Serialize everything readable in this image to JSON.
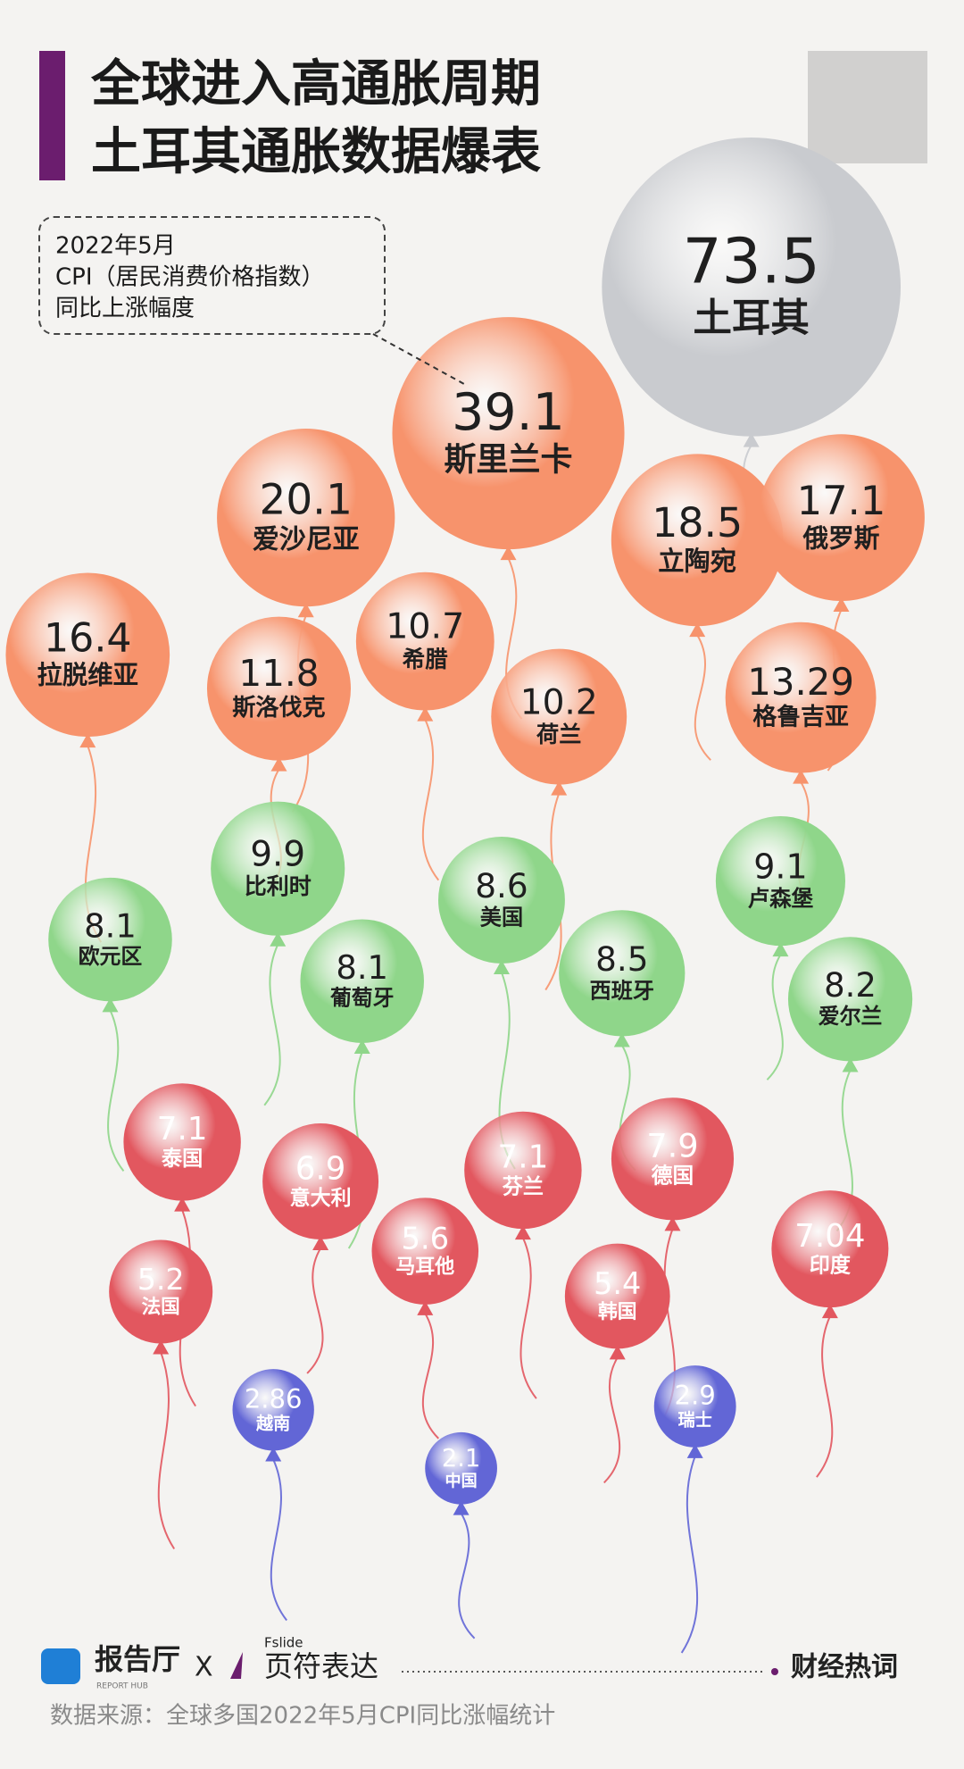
{
  "chart_data": {
    "type": "balloon",
    "title": [
      "全球进入高通胀周期",
      "土耳其通胀数据爆表"
    ],
    "annotation": [
      "2022年5月",
      "CPI（居民消费价格指数）",
      "同比上涨幅度"
    ],
    "categories": [
      "土耳其",
      "斯里兰卡",
      "爱沙尼亚",
      "立陶宛",
      "俄罗斯",
      "拉脱维亚",
      "斯洛伐克",
      "希腊",
      "荷兰",
      "格鲁吉亚",
      "比利时",
      "美国",
      "卢森堡",
      "欧元区",
      "葡萄牙",
      "西班牙",
      "爱尔兰",
      "泰国",
      "意大利",
      "芬兰",
      "德国",
      "马耳他",
      "印度",
      "法国",
      "韩国",
      "越南",
      "瑞士",
      "中国"
    ],
    "values": [
      73.5,
      39.1,
      20.1,
      18.5,
      17.1,
      16.4,
      11.8,
      10.7,
      10.2,
      13.29,
      9.9,
      8.6,
      9.1,
      8.1,
      8.1,
      8.5,
      8.2,
      7.1,
      6.9,
      7.1,
      7.9,
      5.6,
      7.04,
      5.2,
      5.4,
      2.86,
      2.9,
      2.1
    ],
    "colors": [
      "#c9cbcf",
      "#f7936c",
      "#f7936c",
      "#f7936c",
      "#f7936c",
      "#f7936c",
      "#f7936c",
      "#f7936c",
      "#f7936c",
      "#f7936c",
      "#8fd68a",
      "#8fd68a",
      "#8fd68a",
      "#8fd68a",
      "#8fd68a",
      "#8fd68a",
      "#8fd68a",
      "#e2575f",
      "#e2575f",
      "#e2575f",
      "#e2575f",
      "#e2575f",
      "#e2575f",
      "#e2575f",
      "#e2575f",
      "#6266d6",
      "#6266d6",
      "#6266d6"
    ],
    "footer": {
      "brand": "报告厅",
      "brand_sub": "REPORT HUB",
      "x": "X",
      "partner_small": "Fslide",
      "partner": "页符表达",
      "tag": "财经热词"
    },
    "source": "数据来源：全球多国2022年5月CPI同比涨幅统计"
  }
}
